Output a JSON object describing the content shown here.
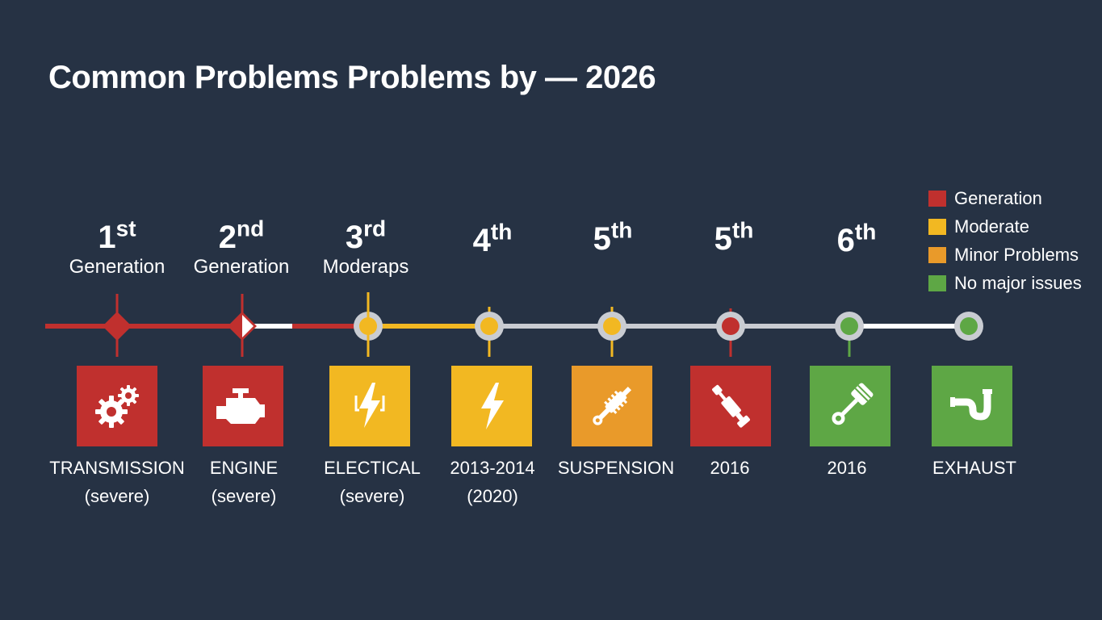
{
  "title": "Common Problems Problems by — 2026",
  "colors": {
    "background": "#263244",
    "red": "#c0302e",
    "yellow": "#f2b822",
    "orange": "#e99a2a",
    "green": "#5ea745",
    "track": "#c9ccd2"
  },
  "legend": [
    {
      "label": "Generation",
      "color": "#c0302e"
    },
    {
      "label": "Moderate",
      "color": "#f2b822"
    },
    {
      "label": "Minor Problems",
      "color": "#e99a2a"
    },
    {
      "label": "No major issues",
      "color": "#5ea745"
    }
  ],
  "items": [
    {
      "num": "1",
      "suffix": "st",
      "sub": "Generation",
      "icon": "gears-icon",
      "color": "#c0302e",
      "caption": "TRANSMISSION",
      "caption_sub": "(severe)"
    },
    {
      "num": "2",
      "suffix": "nd",
      "sub": "Generation",
      "icon": "engine-icon",
      "color": "#c0302e",
      "caption": "ENGINE",
      "caption_sub": "(severe)"
    },
    {
      "num": "3",
      "suffix": "rd",
      "sub": "Moderaps",
      "icon": "battery-bolt-icon",
      "color": "#f2b822",
      "caption": "ELECTICAL",
      "caption_sub": "(severe)"
    },
    {
      "num": "4",
      "suffix": "th",
      "sub": "",
      "icon": "lightning-icon",
      "color": "#f2b822",
      "caption": "2013-2014",
      "caption_sub": "(2020)"
    },
    {
      "num": "5",
      "suffix": "th",
      "sub": "",
      "icon": "shock-absorber-icon",
      "color": "#e99a2a",
      "caption": "SUSPENSION",
      "caption_sub": ""
    },
    {
      "num": "5",
      "suffix": "th",
      "sub": "",
      "icon": "strut-icon",
      "color": "#c0302e",
      "caption": "2016",
      "caption_sub": ""
    },
    {
      "num": "6",
      "suffix": "th",
      "sub": "",
      "icon": "piston-icon",
      "color": "#5ea745",
      "caption": "2016",
      "caption_sub": ""
    },
    {
      "num": "",
      "suffix": "",
      "sub": "",
      "icon": "exhaust-pipe-icon",
      "color": "#5ea745",
      "caption": "EXHAUST",
      "caption_sub": ""
    }
  ]
}
